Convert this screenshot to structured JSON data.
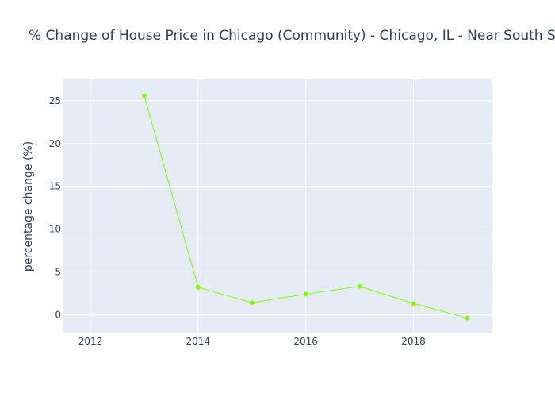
{
  "chart_data": {
    "type": "line",
    "title": "% Change of House Price in Chicago (Community) - Chicago, IL - Near South Side",
    "xlabel": "",
    "ylabel": "percentage change (%)",
    "x": [
      2013,
      2014,
      2015,
      2016,
      2017,
      2018,
      2019
    ],
    "series": [
      {
        "values": [
          25.6,
          3.2,
          1.4,
          2.4,
          3.3,
          1.3,
          -0.4
        ],
        "color": "#7fff00"
      }
    ],
    "xlim": [
      2011.5,
      2019.45
    ],
    "ylim": [
      -2.2,
      27.5
    ],
    "xticks": [
      2012,
      2014,
      2016,
      2018
    ],
    "yticks": [
      0,
      5,
      10,
      15,
      20,
      25
    ],
    "grid": true,
    "legend": "none",
    "colors": {
      "plot_bg": "#e5ecf6",
      "grid": "#ffffff",
      "text": "#2a3f5f"
    }
  }
}
